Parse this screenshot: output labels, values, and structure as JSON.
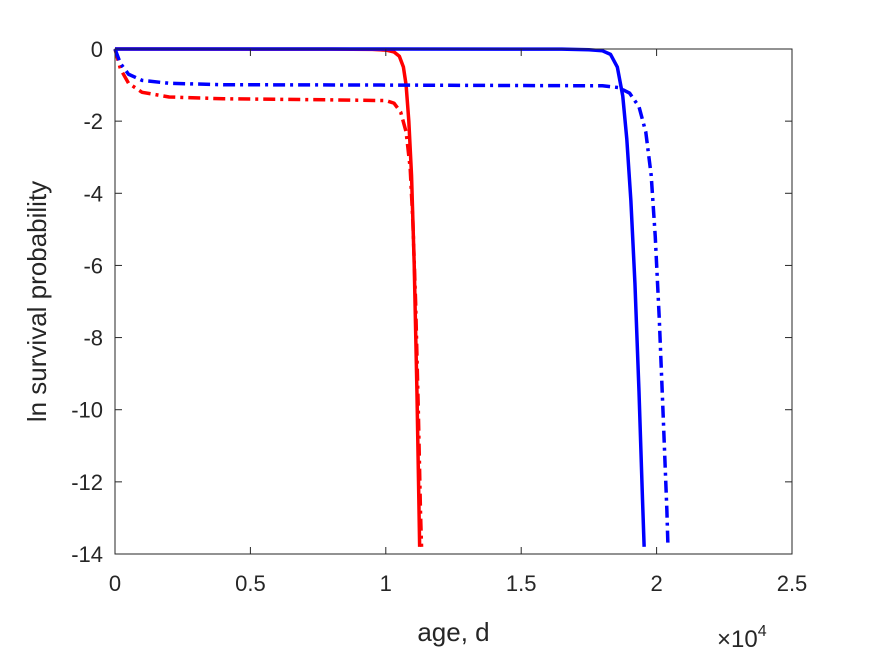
{
  "chart_data": {
    "type": "line",
    "title": "",
    "xlabel": "age, d",
    "ylabel": "ln survival probability",
    "x_multiplier": {
      "base": "×10",
      "exponent": "4"
    },
    "xlim": [
      0,
      25000
    ],
    "ylim": [
      -14,
      0
    ],
    "xticks": [
      0,
      5000,
      10000,
      15000,
      20000,
      25000
    ],
    "xtick_labels": [
      "0",
      "0.5",
      "1",
      "1.5",
      "2",
      "2.5"
    ],
    "yticks": [
      0,
      -2,
      -4,
      -6,
      -8,
      -10,
      -12,
      -14
    ],
    "ytick_labels": [
      "0",
      "-2",
      "-4",
      "-6",
      "-8",
      "-10",
      "-12",
      "-14"
    ],
    "grid": false,
    "series": [
      {
        "color": "#ff0000",
        "style": "solid",
        "points": [
          [
            0,
            0
          ],
          [
            8000,
            -0.003
          ],
          [
            9500,
            -0.012
          ],
          [
            10000,
            -0.03
          ],
          [
            10300,
            -0.08
          ],
          [
            10500,
            -0.2
          ],
          [
            10650,
            -0.5
          ],
          [
            10750,
            -1.0
          ],
          [
            10850,
            -2.0
          ],
          [
            10950,
            -3.5
          ],
          [
            11050,
            -6.0
          ],
          [
            11150,
            -9.5
          ],
          [
            11220,
            -12.5
          ],
          [
            11250,
            -13.8
          ]
        ]
      },
      {
        "color": "#ff0000",
        "style": "dashdot",
        "points": [
          [
            0,
            0
          ],
          [
            200,
            -0.55
          ],
          [
            500,
            -0.95
          ],
          [
            1000,
            -1.2
          ],
          [
            2000,
            -1.33
          ],
          [
            4000,
            -1.38
          ],
          [
            8000,
            -1.41
          ],
          [
            10000,
            -1.43
          ],
          [
            10300,
            -1.5
          ],
          [
            10550,
            -1.75
          ],
          [
            10750,
            -2.3
          ],
          [
            10900,
            -3.3
          ],
          [
            11000,
            -4.8
          ],
          [
            11100,
            -7.0
          ],
          [
            11200,
            -10.0
          ],
          [
            11280,
            -12.8
          ],
          [
            11320,
            -13.8
          ]
        ]
      },
      {
        "color": "#0000ff",
        "style": "solid",
        "points": [
          [
            0,
            0
          ],
          [
            15000,
            -0.002
          ],
          [
            16500,
            -0.005
          ],
          [
            17500,
            -0.02
          ],
          [
            18000,
            -0.05
          ],
          [
            18300,
            -0.15
          ],
          [
            18550,
            -0.5
          ],
          [
            18750,
            -1.3
          ],
          [
            18900,
            -2.5
          ],
          [
            19050,
            -4.2
          ],
          [
            19200,
            -6.5
          ],
          [
            19350,
            -9.5
          ],
          [
            19480,
            -12.5
          ],
          [
            19540,
            -13.8
          ]
        ]
      },
      {
        "color": "#0000ff",
        "style": "dashdot",
        "points": [
          [
            0,
            0
          ],
          [
            200,
            -0.4
          ],
          [
            500,
            -0.7
          ],
          [
            1000,
            -0.87
          ],
          [
            2000,
            -0.95
          ],
          [
            4000,
            -0.99
          ],
          [
            10000,
            -1.0
          ],
          [
            18000,
            -1.02
          ],
          [
            18600,
            -1.07
          ],
          [
            19000,
            -1.22
          ],
          [
            19350,
            -1.6
          ],
          [
            19600,
            -2.3
          ],
          [
            19800,
            -3.5
          ],
          [
            19950,
            -5.2
          ],
          [
            20100,
            -7.5
          ],
          [
            20250,
            -10.3
          ],
          [
            20380,
            -12.8
          ],
          [
            20420,
            -13.8
          ]
        ]
      }
    ]
  }
}
